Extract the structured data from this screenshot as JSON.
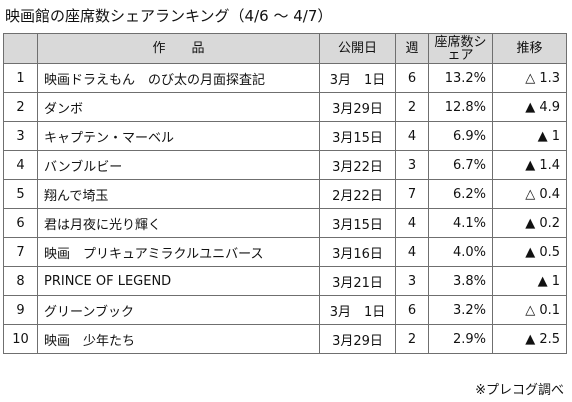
{
  "title": "映画館の座席数シェアランキング（4/6 ～ 4/7）",
  "headers": {
    "rank": "",
    "title": "作　　品",
    "release": "公開日",
    "weeks": "週",
    "share": "座席数シェア",
    "trend": "推移"
  },
  "rows": [
    {
      "rank": "1",
      "title": "映画ドラえもん　のび太の月面探査記",
      "release": "3月　1日",
      "weeks": "6",
      "share": "13.2%",
      "trend": "△ 1.3"
    },
    {
      "rank": "2",
      "title": "ダンボ",
      "release": "3月29日",
      "weeks": "2",
      "share": "12.8%",
      "trend": "▲ 4.9"
    },
    {
      "rank": "3",
      "title": "キャプテン・マーベル",
      "release": "3月15日",
      "weeks": "4",
      "share": "6.9%",
      "trend": "▲ 1"
    },
    {
      "rank": "4",
      "title": "バンブルビー",
      "release": "3月22日",
      "weeks": "3",
      "share": "6.7%",
      "trend": "▲ 1.4"
    },
    {
      "rank": "5",
      "title": "翔んで埼玉",
      "release": "2月22日",
      "weeks": "7",
      "share": "6.2%",
      "trend": "△ 0.4"
    },
    {
      "rank": "6",
      "title": "君は月夜に光り輝く",
      "release": "3月15日",
      "weeks": "4",
      "share": "4.1%",
      "trend": "▲ 0.2"
    },
    {
      "rank": "7",
      "title": "映画　プリキュアミラクルユニバース",
      "release": "3月16日",
      "weeks": "4",
      "share": "4.0%",
      "trend": "▲ 0.5"
    },
    {
      "rank": "8",
      "title": "PRINCE OF LEGEND",
      "release": "3月21日",
      "weeks": "3",
      "share": "3.8%",
      "trend": "▲ 1"
    },
    {
      "rank": "9",
      "title": "グリーンブック",
      "release": "3月　1日",
      "weeks": "6",
      "share": "3.2%",
      "trend": "△ 0.1"
    },
    {
      "rank": "10",
      "title": "映画　少年たち",
      "release": "3月29日",
      "weeks": "2",
      "share": "2.9%",
      "trend": "▲ 2.5"
    }
  ],
  "footer": "※プレコグ調べ"
}
